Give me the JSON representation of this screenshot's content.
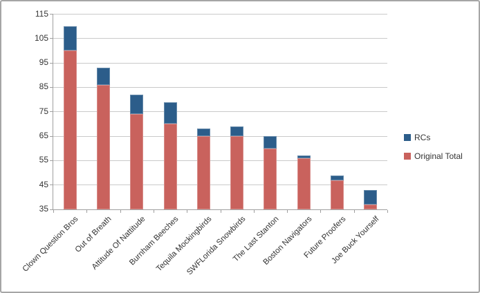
{
  "window": {
    "background": "#ffffff",
    "border_color": "#a6a6a6"
  },
  "chart_data": {
    "type": "bar",
    "stacked": true,
    "title": "",
    "xlabel": "",
    "ylabel": "",
    "categories": [
      "Clown Question Bros",
      "Out of Breath",
      "Attitude Of Nattitude",
      "Burnham Beeches",
      "Tequila Mockingbirds",
      "SWFLorida Snowbirds",
      "The Last Stanton",
      "Boston Navigators",
      "Future Proofers",
      "Joe Buck Yourself"
    ],
    "series": [
      {
        "name": "Original Total",
        "color": "#c9625d",
        "values": [
          100,
          86,
          74,
          70,
          65,
          65,
          60,
          56,
          47,
          37
        ]
      },
      {
        "name": "RCs",
        "color": "#2c5d8a",
        "values": [
          10,
          7,
          8,
          9,
          3,
          4,
          5,
          1,
          2,
          6
        ]
      }
    ],
    "stack_totals": [
      110,
      93,
      82,
      79,
      68,
      69,
      65,
      57,
      49,
      43
    ],
    "ylim": [
      35,
      115
    ],
    "ytick_step": 10,
    "ytick_labels": [
      "35",
      "45",
      "55",
      "65",
      "75",
      "85",
      "95",
      "105",
      "115"
    ],
    "grid": true,
    "x_label_rotation_deg": 45,
    "legend_position": "right",
    "legend_order_top_to_bottom": [
      "RCs",
      "Original Total"
    ]
  },
  "colors": {
    "gridline": "#c9c9c9",
    "axis": "#9e9e9e",
    "text": "#333333"
  }
}
